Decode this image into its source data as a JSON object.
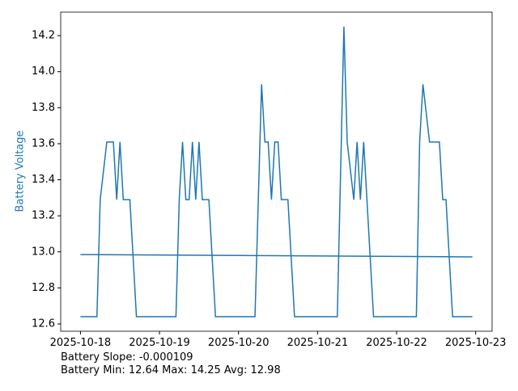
{
  "chart_data": {
    "type": "line",
    "y_label": "Battery Voltage",
    "annotations": [
      "Battery Slope: -0.000109",
      "Battery Min: 12.64 Max: 14.25 Avg: 12.98"
    ],
    "series": [
      {
        "color": "#1f77b4",
        "x": [
          "2025-10-18 00:00",
          "2025-10-18 05:00",
          "2025-10-18 06:00",
          "2025-10-18 08:00",
          "2025-10-18 10:00",
          "2025-10-18 11:00",
          "2025-10-18 12:00",
          "2025-10-18 13:00",
          "2025-10-18 15:00",
          "2025-10-18 17:00",
          "2025-10-19 05:00",
          "2025-10-19 06:00",
          "2025-10-19 07:00",
          "2025-10-19 08:00",
          "2025-10-19 09:00",
          "2025-10-19 10:00",
          "2025-10-19 11:00",
          "2025-10-19 12:00",
          "2025-10-19 13:00",
          "2025-10-19 15:00",
          "2025-10-19 17:00",
          "2025-10-20 05:00",
          "2025-10-20 07:00",
          "2025-10-20 08:00",
          "2025-10-20 09:00",
          "2025-10-20 10:00",
          "2025-10-20 11:00",
          "2025-10-20 12:00",
          "2025-10-20 13:00",
          "2025-10-20 15:00",
          "2025-10-20 17:00",
          "2025-10-21 06:00",
          "2025-10-21 08:00",
          "2025-10-21 09:00",
          "2025-10-21 11:00",
          "2025-10-21 12:00",
          "2025-10-21 13:00",
          "2025-10-21 14:00",
          "2025-10-21 17:00",
          "2025-10-22 06:00",
          "2025-10-22 07:00",
          "2025-10-22 08:00",
          "2025-10-22 10:00",
          "2025-10-22 13:00",
          "2025-10-22 14:00",
          "2025-10-22 15:00",
          "2025-10-22 17:00",
          "2025-10-22 23:00"
        ],
        "values": [
          12.64,
          12.64,
          13.29,
          13.61,
          13.61,
          13.29,
          13.61,
          13.29,
          13.29,
          12.64,
          12.64,
          13.29,
          13.61,
          13.29,
          13.29,
          13.61,
          13.29,
          13.61,
          13.29,
          13.29,
          12.64,
          12.64,
          13.93,
          13.61,
          13.61,
          13.29,
          13.61,
          13.61,
          13.29,
          13.29,
          12.64,
          12.64,
          14.25,
          13.61,
          13.29,
          13.61,
          13.29,
          13.61,
          12.64,
          12.64,
          13.61,
          13.93,
          13.61,
          13.61,
          13.29,
          13.29,
          12.64,
          12.64
        ]
      },
      {
        "color": "#1f77b4",
        "x": [
          "2025-10-18 00:00",
          "2025-10-22 23:00"
        ],
        "values": [
          12.985,
          12.972
        ]
      }
    ],
    "xlim": [
      "2025-10-17 18:00",
      "2025-10-23 05:00"
    ],
    "xticks": [
      "2025-10-18",
      "2025-10-19",
      "2025-10-20",
      "2025-10-21",
      "2025-10-22",
      "2025-10-23"
    ],
    "ylim": [
      12.5595,
      14.3305
    ],
    "yticks": [
      12.6,
      12.8,
      {
        "value": 13,
        "label": "13.0"
      },
      13.2,
      13.4,
      13.6,
      13.8,
      {
        "value": 14,
        "label": "14.0"
      },
      14.2
    ]
  }
}
